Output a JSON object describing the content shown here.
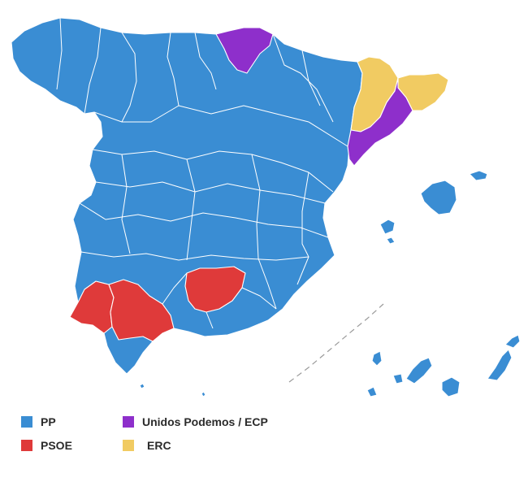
{
  "map": {
    "colors": {
      "pp": "#3A8DD3",
      "psoe": "#DF3A3A",
      "podemos": "#8E2FCB",
      "erc": "#F1CB62"
    }
  },
  "legend": {
    "items": [
      {
        "key": "pp",
        "label": "PP",
        "color": "#3A8DD3"
      },
      {
        "key": "psoe",
        "label": "PSOE",
        "color": "#DF3A3A"
      },
      {
        "key": "podemos",
        "label": "Unidos Podemos / ECP",
        "color": "#8E2FCB"
      },
      {
        "key": "erc",
        "label": "ERC",
        "color": "#F1CB62"
      }
    ]
  }
}
